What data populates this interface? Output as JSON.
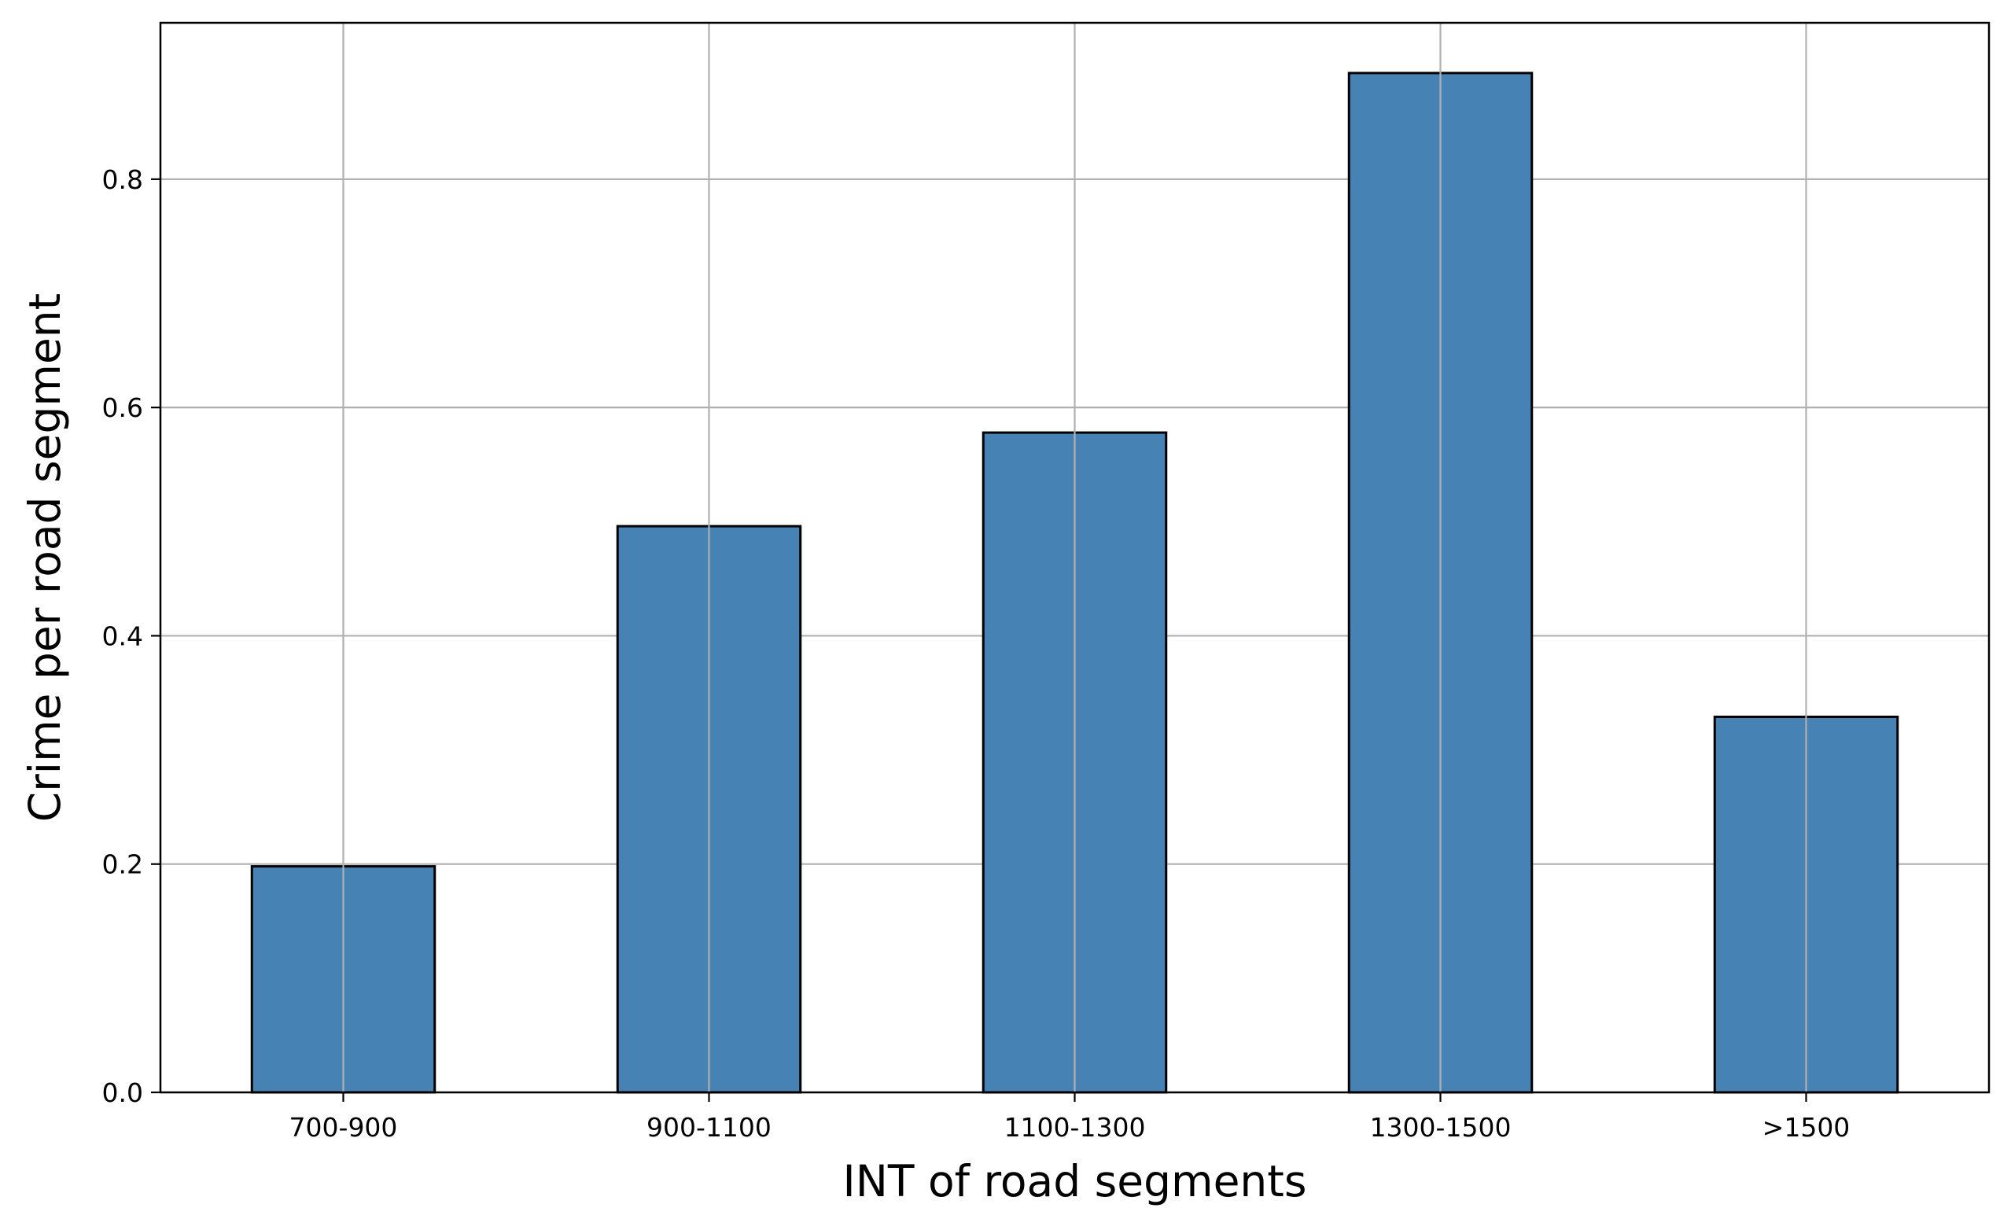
{
  "chart_data": {
    "type": "bar",
    "title": "",
    "xlabel": "INT of road segments",
    "ylabel": "Crime per road segment",
    "categories": [
      "700-900",
      "900-1100",
      "1100-1300",
      "1300-1500",
      ">1500"
    ],
    "values": [
      0.198,
      0.496,
      0.578,
      0.893,
      0.329
    ],
    "ylim": [
      0,
      0.937
    ],
    "yticks": [
      0.0,
      0.2,
      0.4,
      0.6,
      0.8
    ],
    "ytick_labels": [
      "0.0",
      "0.2",
      "0.4",
      "0.6",
      "0.8"
    ],
    "grid": true,
    "legend": "none",
    "colors": {
      "bar_fill": "#4682b4",
      "bar_edge": "#000000",
      "grid": "#b0b0b0"
    }
  }
}
